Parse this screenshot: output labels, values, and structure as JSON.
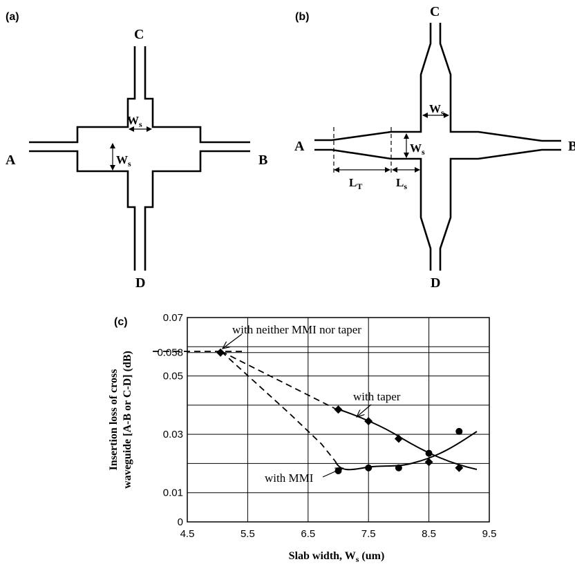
{
  "panels": {
    "a": {
      "label": "(a)",
      "ports": {
        "top": "C",
        "bottom": "D",
        "left": "A",
        "right": "B"
      },
      "dims": [
        {
          "main": "W",
          "sub": "s"
        },
        {
          "main": "W",
          "sub": "s"
        }
      ]
    },
    "b": {
      "label": "(b)",
      "ports": {
        "top": "C",
        "bottom": "D",
        "left": "A",
        "right": "B"
      },
      "dims": [
        {
          "main": "W",
          "sub": "s"
        },
        {
          "main": "W",
          "sub": "s"
        },
        {
          "main": "L",
          "sub": "T"
        },
        {
          "main": "L",
          "sub": "s"
        }
      ]
    },
    "c": {
      "label": "(c)"
    }
  },
  "chart_data": {
    "type": "line",
    "xlabel": {
      "main": "Slab width, W",
      "sub": "s",
      "tail": " (um)"
    },
    "ylabel": {
      "line1": "Insertion loss of cross",
      "line2": "waveguide [A-B or C-D] (dB)"
    },
    "xlim": [
      4.5,
      9.5
    ],
    "ylim": [
      0,
      0.07
    ],
    "x_ticks": [
      "4.5",
      "5.5",
      "6.5",
      "7.5",
      "8.5",
      "9.5"
    ],
    "x_tick_values": [
      4.5,
      5.5,
      6.5,
      7.5,
      8.5,
      9.5
    ],
    "y_ticks": [
      "0",
      "0.01",
      "0.03",
      "0.05",
      "0.058",
      "0.07"
    ],
    "y_tick_values": [
      0,
      0.01,
      0.03,
      0.05,
      0.058,
      0.07
    ],
    "x_grid": [
      4.5,
      5.5,
      6.5,
      7.5,
      8.5,
      9.5
    ],
    "y_grid": [
      0,
      0.01,
      0.02,
      0.03,
      0.04,
      0.05,
      0.058,
      0.06,
      0.07
    ],
    "series": [
      {
        "name": "with taper",
        "marker": "diamond",
        "x": [
          7.0,
          7.5,
          8.0,
          8.5,
          9.0
        ],
        "y": [
          0.0385,
          0.0345,
          0.0285,
          0.0205,
          0.0185
        ]
      },
      {
        "name": "with MMI",
        "marker": "circle",
        "x": [
          7.0,
          7.5,
          8.0,
          8.5,
          9.0
        ],
        "y": [
          0.0175,
          0.0185,
          0.0185,
          0.0235,
          0.031
        ]
      },
      {
        "name": "with neither MMI nor taper",
        "marker": "diamond",
        "x": [
          5.05
        ],
        "y": [
          0.058
        ]
      }
    ],
    "annotations": [
      "with neither MMI nor taper",
      "with taper",
      "with MMI"
    ]
  }
}
